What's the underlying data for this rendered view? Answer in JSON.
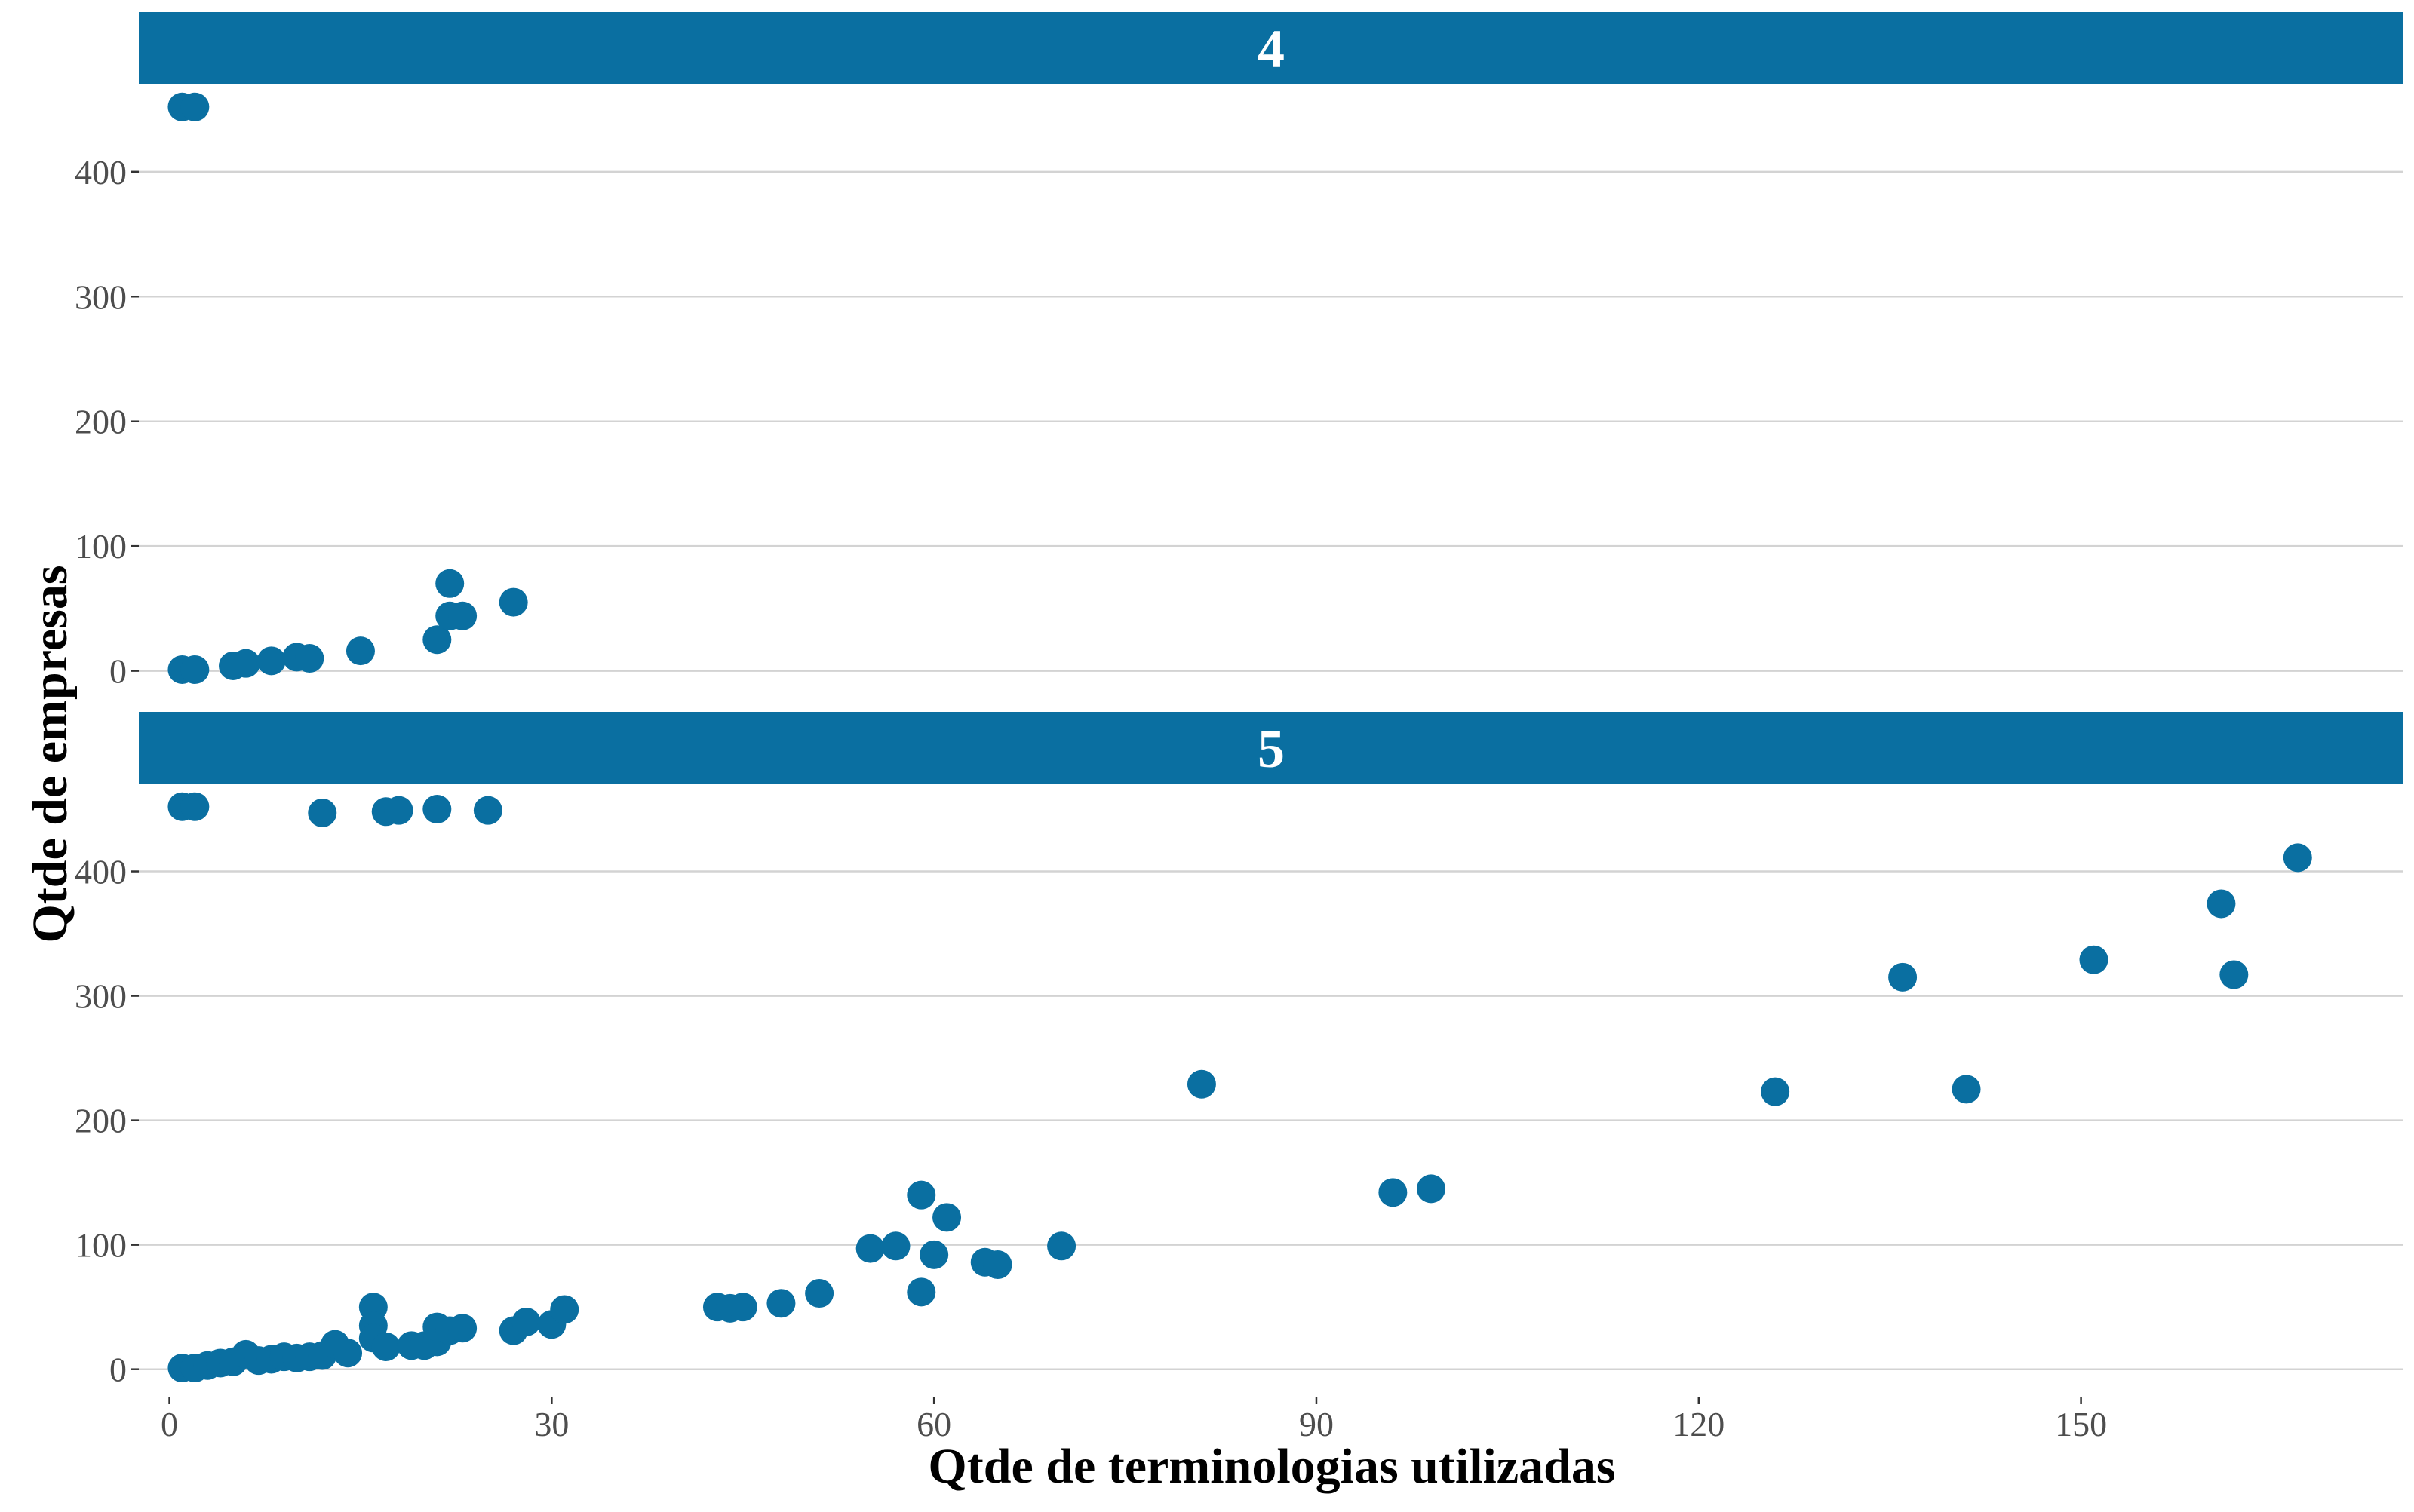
{
  "chart_data": {
    "type": "scatter",
    "xlabel": "Qtde de terminologias utilizadas",
    "ylabel": "Qtde de empresas",
    "xlim": [
      -2.4,
      175.3
    ],
    "x_ticks": [
      0,
      30,
      60,
      90,
      120,
      150
    ],
    "y_ticks": [
      0,
      100,
      200,
      300,
      400
    ],
    "grid": "horizontal-major",
    "point_color": "#0a6fa1",
    "strip_color": "#0a6fa1",
    "facets": [
      {
        "label": "4",
        "ylim": [
          -22,
          470
        ],
        "points": [
          {
            "x": 1,
            "y": 452
          },
          {
            "x": 2,
            "y": 452
          },
          {
            "x": 1,
            "y": 1
          },
          {
            "x": 2,
            "y": 1
          },
          {
            "x": 5,
            "y": 4
          },
          {
            "x": 6,
            "y": 6
          },
          {
            "x": 8,
            "y": 8
          },
          {
            "x": 10,
            "y": 11
          },
          {
            "x": 11,
            "y": 10
          },
          {
            "x": 15,
            "y": 16
          },
          {
            "x": 21,
            "y": 25
          },
          {
            "x": 22,
            "y": 44
          },
          {
            "x": 22,
            "y": 70
          },
          {
            "x": 23,
            "y": 44
          },
          {
            "x": 27,
            "y": 55
          }
        ]
      },
      {
        "label": "5",
        "ylim": [
          -22,
          470
        ],
        "points": [
          {
            "x": 1,
            "y": 452
          },
          {
            "x": 2,
            "y": 452
          },
          {
            "x": 12,
            "y": 447
          },
          {
            "x": 17,
            "y": 448
          },
          {
            "x": 18,
            "y": 449
          },
          {
            "x": 21,
            "y": 450
          },
          {
            "x": 25,
            "y": 449
          },
          {
            "x": 1,
            "y": 1
          },
          {
            "x": 2,
            "y": 1
          },
          {
            "x": 3,
            "y": 3
          },
          {
            "x": 4,
            "y": 5
          },
          {
            "x": 5,
            "y": 6
          },
          {
            "x": 6,
            "y": 12
          },
          {
            "x": 7,
            "y": 7
          },
          {
            "x": 8,
            "y": 8
          },
          {
            "x": 9,
            "y": 10
          },
          {
            "x": 10,
            "y": 9
          },
          {
            "x": 11,
            "y": 10
          },
          {
            "x": 12,
            "y": 11
          },
          {
            "x": 13,
            "y": 20
          },
          {
            "x": 14,
            "y": 13
          },
          {
            "x": 16,
            "y": 50
          },
          {
            "x": 16,
            "y": 35
          },
          {
            "x": 16,
            "y": 25
          },
          {
            "x": 17,
            "y": 18
          },
          {
            "x": 19,
            "y": 19
          },
          {
            "x": 20,
            "y": 19
          },
          {
            "x": 21,
            "y": 22
          },
          {
            "x": 21,
            "y": 34
          },
          {
            "x": 22,
            "y": 31
          },
          {
            "x": 23,
            "y": 33
          },
          {
            "x": 27,
            "y": 31
          },
          {
            "x": 28,
            "y": 38
          },
          {
            "x": 30,
            "y": 36
          },
          {
            "x": 31,
            "y": 48
          },
          {
            "x": 43,
            "y": 50
          },
          {
            "x": 44,
            "y": 49
          },
          {
            "x": 45,
            "y": 50
          },
          {
            "x": 48,
            "y": 53
          },
          {
            "x": 51,
            "y": 61
          },
          {
            "x": 55,
            "y": 97
          },
          {
            "x": 57,
            "y": 99
          },
          {
            "x": 59,
            "y": 140
          },
          {
            "x": 59,
            "y": 62
          },
          {
            "x": 60,
            "y": 92
          },
          {
            "x": 61,
            "y": 122
          },
          {
            "x": 64,
            "y": 86
          },
          {
            "x": 65,
            "y": 84
          },
          {
            "x": 70,
            "y": 99
          },
          {
            "x": 81,
            "y": 229
          },
          {
            "x": 96,
            "y": 142
          },
          {
            "x": 99,
            "y": 145
          },
          {
            "x": 126,
            "y": 223
          },
          {
            "x": 136,
            "y": 315
          },
          {
            "x": 141,
            "y": 225
          },
          {
            "x": 151,
            "y": 329
          },
          {
            "x": 161,
            "y": 374
          },
          {
            "x": 162,
            "y": 317
          },
          {
            "x": 167,
            "y": 411
          }
        ]
      }
    ]
  }
}
